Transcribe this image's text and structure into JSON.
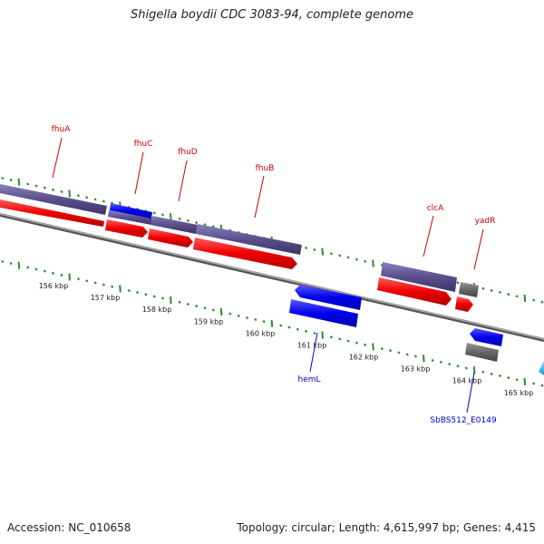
{
  "title": "Shigella boydii CDC 3083-94, complete genome",
  "footer": {
    "accession": "Accession: NC_010658",
    "topology": "Topology: circular; Length: 4,615,997 bp; Genes: 4,415"
  },
  "scale": {
    "labels": [
      "156 kbp",
      "157 kbp",
      "158 kbp",
      "159 kbp",
      "160 kbp",
      "161 kbp",
      "162 kbp",
      "163 kbp",
      "164 kbp",
      "165 kbp"
    ]
  },
  "genes": [
    {
      "name": "fhuA",
      "color": "#cc0000"
    },
    {
      "name": "fhuC",
      "color": "#cc0000"
    },
    {
      "name": "fhuD",
      "color": "#cc0000"
    },
    {
      "name": "fhuB",
      "color": "#cc0000"
    },
    {
      "name": "clcA",
      "color": "#cc0000"
    },
    {
      "name": "yadR",
      "color": "#cc0000"
    },
    {
      "name": "hemL",
      "color": "#0000cc"
    },
    {
      "name": "SbBS512_E0149",
      "color": "#0000cc"
    }
  ],
  "colors": {
    "forward_cds": "#ee0000",
    "reverse_cds": "#0000ee",
    "gene_track": "#5a4f8c",
    "pseudo_gene": "#666666",
    "backbone": "#888888",
    "tick_marks": "#2e8b2e"
  }
}
